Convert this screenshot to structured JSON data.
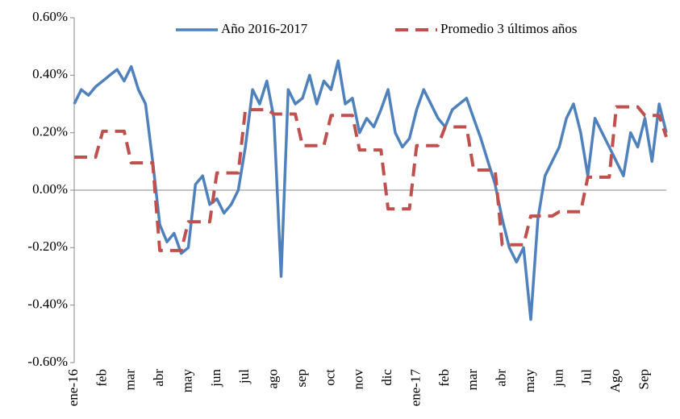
{
  "chart_data": {
    "type": "line",
    "categories": [
      "ene-16",
      null,
      null,
      null,
      "feb",
      null,
      null,
      null,
      "mar",
      null,
      null,
      null,
      "abr",
      null,
      null,
      null,
      "may",
      null,
      null,
      null,
      "jun",
      null,
      null,
      null,
      "jul",
      null,
      null,
      null,
      "ago",
      null,
      null,
      null,
      "sep",
      null,
      null,
      null,
      "oct",
      null,
      null,
      null,
      "nov",
      null,
      null,
      null,
      "dic",
      null,
      null,
      null,
      "ene-17",
      null,
      null,
      null,
      "feb",
      null,
      null,
      null,
      "mar",
      null,
      null,
      null,
      "abr",
      null,
      null,
      null,
      "may",
      null,
      null,
      null,
      "jun",
      null,
      null,
      null,
      "Jul",
      null,
      null,
      null,
      "Ago",
      null,
      null,
      null,
      "Sep",
      null,
      null,
      null
    ],
    "series": [
      {
        "name": "Año 2016-2017",
        "color": "#4f81bd",
        "dashed": false,
        "values": [
          0.3,
          0.35,
          0.33,
          0.36,
          0.38,
          0.4,
          0.42,
          0.38,
          0.43,
          0.35,
          0.3,
          0.1,
          -0.12,
          -0.18,
          -0.15,
          -0.22,
          -0.2,
          0.02,
          0.05,
          -0.05,
          -0.03,
          -0.08,
          -0.05,
          0.0,
          0.15,
          0.35,
          0.3,
          0.38,
          0.25,
          -0.3,
          0.35,
          0.3,
          0.32,
          0.4,
          0.3,
          0.38,
          0.35,
          0.45,
          0.3,
          0.32,
          0.2,
          0.25,
          0.22,
          0.28,
          0.35,
          0.2,
          0.15,
          0.18,
          0.28,
          0.35,
          0.3,
          0.25,
          0.22,
          0.28,
          0.3,
          0.32,
          0.25,
          0.18,
          0.1,
          0.02,
          -0.1,
          -0.2,
          -0.25,
          -0.2,
          -0.45,
          -0.1,
          0.05,
          0.1,
          0.15,
          0.25,
          0.3,
          0.2,
          0.05,
          0.25,
          0.2,
          0.15,
          0.1,
          0.05,
          0.2,
          0.15,
          0.25,
          0.1,
          0.3,
          0.2
        ]
      },
      {
        "name": "Promedio 3 últimos años",
        "color": "#c0504d",
        "dashed": true,
        "values": [
          0.115,
          0.115,
          0.115,
          0.115,
          0.205,
          0.205,
          0.205,
          0.205,
          0.095,
          0.095,
          0.095,
          0.095,
          -0.21,
          -0.21,
          -0.21,
          -0.21,
          -0.11,
          -0.11,
          -0.11,
          -0.11,
          0.06,
          0.06,
          0.06,
          0.06,
          0.28,
          0.28,
          0.28,
          0.28,
          0.265,
          0.265,
          0.265,
          0.265,
          0.155,
          0.155,
          0.155,
          0.155,
          0.26,
          0.26,
          0.26,
          0.26,
          0.14,
          0.14,
          0.14,
          0.14,
          -0.065,
          -0.065,
          -0.065,
          -0.065,
          0.155,
          0.155,
          0.155,
          0.155,
          0.22,
          0.22,
          0.22,
          0.22,
          0.07,
          0.07,
          0.07,
          0.07,
          -0.19,
          -0.19,
          -0.19,
          -0.19,
          -0.09,
          -0.09,
          -0.09,
          -0.09,
          -0.075,
          -0.075,
          -0.075,
          -0.075,
          0.045,
          0.045,
          0.045,
          0.045,
          0.29,
          0.29,
          0.29,
          0.29,
          0.26,
          0.26,
          0.26,
          0.185
        ]
      }
    ],
    "ylim": [
      -0.6,
      0.6
    ],
    "yticks": [
      {
        "value": -0.6,
        "label": "-0.60%"
      },
      {
        "value": -0.4,
        "label": "-0.40%"
      },
      {
        "value": -0.2,
        "label": "-0.20%"
      },
      {
        "value": 0,
        "label": "0.00%"
      },
      {
        "value": 0.2,
        "label": "0.20%"
      },
      {
        "value": 0.4,
        "label": "0.40%"
      },
      {
        "value": 0.6,
        "label": "0.60%"
      }
    ],
    "legend": "top"
  }
}
